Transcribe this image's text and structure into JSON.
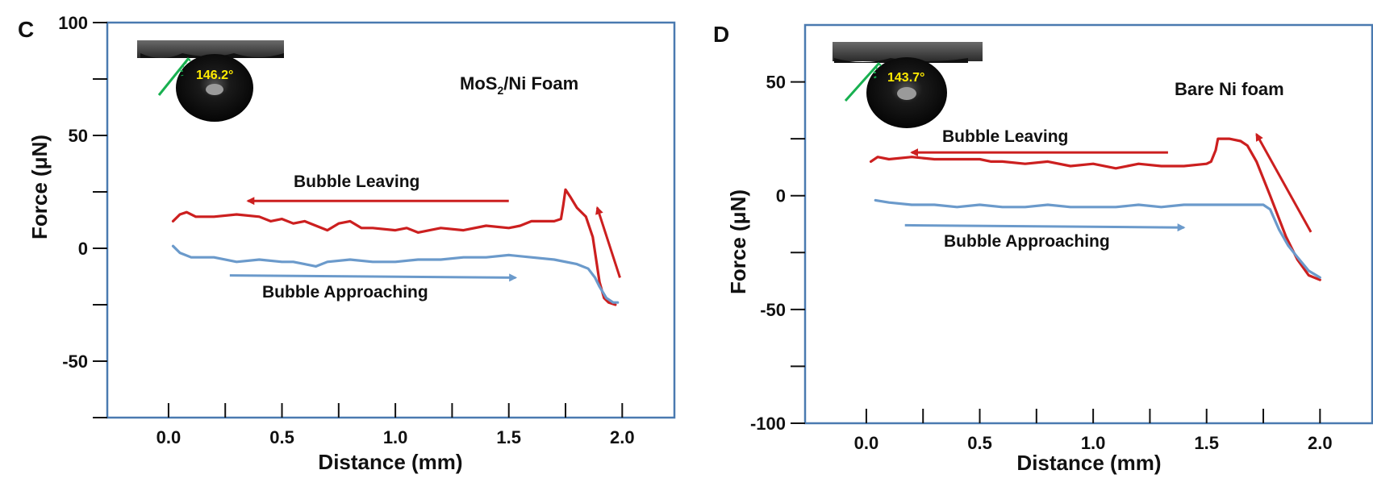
{
  "colors": {
    "frame": "#4a7ab0",
    "leaving": "#cc1f1f",
    "approaching": "#6b9acb",
    "contact_line": "#18b050",
    "angle_text": "#ffeb00"
  },
  "chart_data": [
    {
      "type": "line",
      "panel_label": "C",
      "sample_label_main": "MoS",
      "sample_label_sub": "2",
      "sample_label_tail": "/Ni Foam",
      "xlabel": "Distance (mm)",
      "ylabel": "Force (μN)",
      "xlim": [
        -0.27,
        2.23
      ],
      "ylim": [
        -75,
        100
      ],
      "xticks": [
        0.0,
        0.5,
        1.0,
        1.5,
        2.0
      ],
      "xtick_labels": [
        "0.0",
        "0.5",
        "1.0",
        "1.5",
        "2.0"
      ],
      "yticks": [
        -75,
        -50,
        -25,
        0,
        25,
        50,
        75,
        100
      ],
      "ytick_labels": [
        "",
        "-50",
        "",
        "0",
        "",
        "50",
        "",
        "100"
      ],
      "inset_contact_angle": "146.2°",
      "grid": false,
      "series": [
        {
          "name": "Bubble Leaving",
          "color": "#cc1f1f",
          "x": [
            0.02,
            0.05,
            0.08,
            0.12,
            0.2,
            0.3,
            0.4,
            0.45,
            0.5,
            0.55,
            0.6,
            0.7,
            0.75,
            0.8,
            0.85,
            0.9,
            1.0,
            1.05,
            1.1,
            1.2,
            1.3,
            1.4,
            1.5,
            1.55,
            1.6,
            1.65,
            1.7,
            1.73,
            1.74,
            1.75,
            1.77,
            1.8,
            1.84,
            1.87,
            1.9,
            1.92,
            1.94,
            1.97
          ],
          "y": [
            12,
            15,
            16,
            14,
            14,
            15,
            14,
            12,
            13,
            11,
            12,
            8,
            11,
            12,
            9,
            9,
            8,
            9,
            7,
            9,
            8,
            10,
            9,
            10,
            12,
            12,
            12,
            13,
            19,
            26,
            23,
            18,
            14,
            5,
            -15,
            -22,
            -24,
            -25
          ]
        },
        {
          "name": "Bubble Approaching",
          "color": "#6b9acb",
          "x": [
            0.02,
            0.05,
            0.1,
            0.2,
            0.3,
            0.4,
            0.5,
            0.55,
            0.6,
            0.65,
            0.7,
            0.8,
            0.9,
            1.0,
            1.1,
            1.2,
            1.3,
            1.4,
            1.5,
            1.6,
            1.7,
            1.8,
            1.85,
            1.88,
            1.9,
            1.93,
            1.96,
            1.98
          ],
          "y": [
            1,
            -2,
            -4,
            -4,
            -6,
            -5,
            -6,
            -6,
            -7,
            -8,
            -6,
            -5,
            -6,
            -6,
            -5,
            -5,
            -4,
            -4,
            -3,
            -4,
            -5,
            -7,
            -9,
            -13,
            -17,
            -22,
            -24,
            -24
          ]
        }
      ],
      "annotations": [
        {
          "text": "Bubble Leaving",
          "arrow_from": [
            1.5,
            21
          ],
          "arrow_to": [
            0.35,
            21
          ]
        },
        {
          "text": "Bubble Approaching",
          "arrow_from": [
            0.27,
            -12
          ],
          "arrow_to": [
            1.53,
            -13
          ]
        }
      ],
      "extra_arrows": [
        {
          "from": [
            1.99,
            -13
          ],
          "to": [
            1.89,
            18
          ]
        }
      ]
    },
    {
      "type": "line",
      "panel_label": "D",
      "sample_label": "Bare Ni foam",
      "xlabel": "Distance (mm)",
      "ylabel": "Force (μN)",
      "xlim": [
        -0.27,
        2.23
      ],
      "ylim": [
        -100,
        75
      ],
      "xticks": [
        0.0,
        0.5,
        1.0,
        1.5,
        2.0
      ],
      "xtick_labels": [
        "0.0",
        "0.5",
        "1.0",
        "1.5",
        "2.0"
      ],
      "yticks": [
        -100,
        -75,
        -50,
        -25,
        0,
        25,
        50
      ],
      "ytick_labels": [
        "-100",
        "",
        "-50",
        "",
        "0",
        "",
        "50"
      ],
      "inset_contact_angle": "143.7°",
      "grid": false,
      "series": [
        {
          "name": "Bubble Leaving",
          "color": "#cc1f1f",
          "x": [
            0.02,
            0.05,
            0.1,
            0.2,
            0.3,
            0.4,
            0.5,
            0.55,
            0.6,
            0.7,
            0.8,
            0.9,
            1.0,
            1.1,
            1.2,
            1.3,
            1.4,
            1.5,
            1.52,
            1.54,
            1.55,
            1.6,
            1.65,
            1.68,
            1.72,
            1.78,
            1.85,
            1.9,
            1.95,
            2.0
          ],
          "y": [
            15,
            17,
            16,
            17,
            16,
            16,
            16,
            15,
            15,
            14,
            15,
            13,
            14,
            12,
            14,
            13,
            13,
            14,
            15,
            20,
            25,
            25,
            24,
            22,
            15,
            0,
            -18,
            -28,
            -35,
            -37
          ]
        },
        {
          "name": "Bubble Approaching",
          "color": "#6b9acb",
          "x": [
            0.04,
            0.1,
            0.2,
            0.3,
            0.4,
            0.5,
            0.6,
            0.7,
            0.8,
            0.9,
            1.0,
            1.1,
            1.2,
            1.3,
            1.4,
            1.5,
            1.6,
            1.7,
            1.75,
            1.78,
            1.82,
            1.86,
            1.9,
            1.95,
            2.0
          ],
          "y": [
            -2,
            -3,
            -4,
            -4,
            -5,
            -4,
            -5,
            -5,
            -4,
            -5,
            -5,
            -5,
            -4,
            -5,
            -4,
            -4,
            -4,
            -4,
            -4,
            -6,
            -15,
            -22,
            -27,
            -33,
            -36
          ]
        }
      ],
      "annotations": [
        {
          "text": "Bubble Leaving",
          "arrow_from": [
            1.33,
            19
          ],
          "arrow_to": [
            0.2,
            19
          ]
        },
        {
          "text": "Bubble Approaching",
          "arrow_from": [
            0.17,
            -13
          ],
          "arrow_to": [
            1.4,
            -14
          ]
        }
      ],
      "extra_arrows": [
        {
          "from": [
            1.96,
            -16
          ],
          "to": [
            1.72,
            27
          ]
        }
      ]
    }
  ]
}
